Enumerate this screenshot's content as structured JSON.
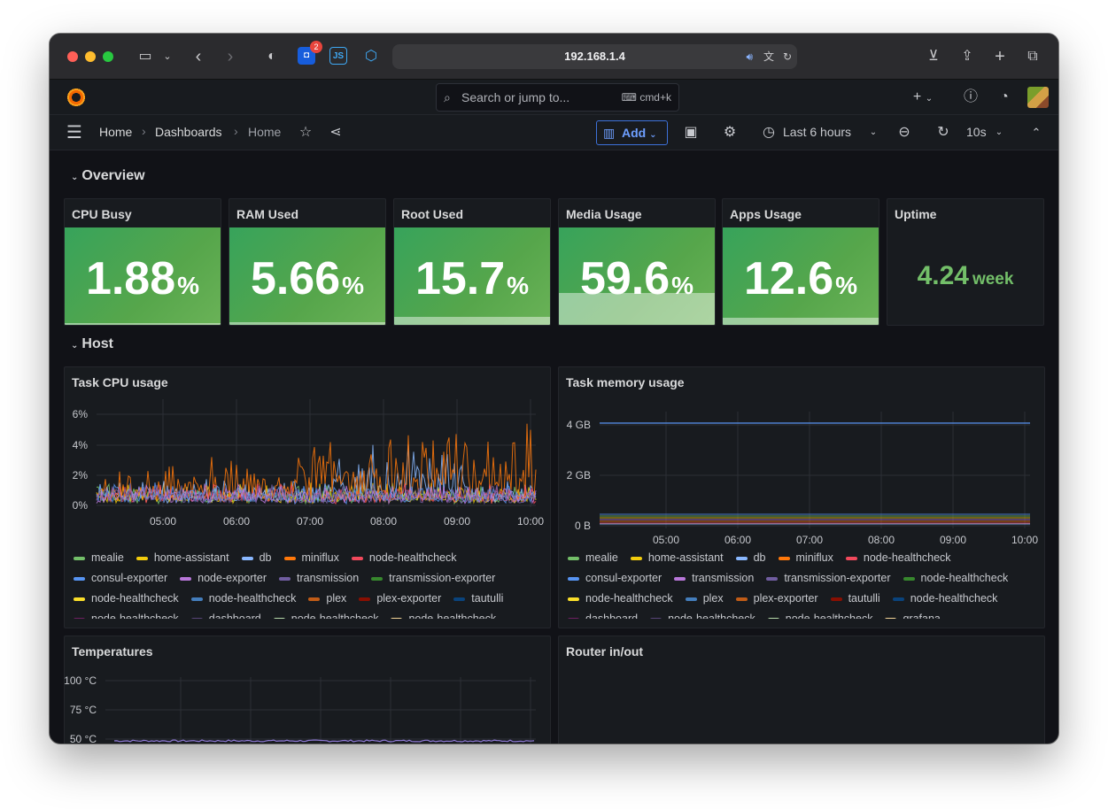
{
  "browser": {
    "url": "192.168.1.4",
    "badge_count": "2",
    "js_ext": "JS"
  },
  "topbar": {
    "search_placeholder": "Search or jump to...",
    "shortcut": "cmd+k"
  },
  "nav": {
    "crumbs": [
      "Home",
      "Dashboards",
      "Home"
    ],
    "add_label": "Add",
    "time_range": "Last 6 hours",
    "refresh_interval": "10s"
  },
  "rows": {
    "overview": "Overview",
    "host": "Host"
  },
  "stats": [
    {
      "title": "CPU Busy",
      "value": "1.88",
      "unit": "%",
      "fill_percent": 1.88
    },
    {
      "title": "RAM Used",
      "value": "5.66",
      "unit": "%",
      "fill_percent": 5.66
    },
    {
      "title": "Root Used",
      "value": "15.7",
      "unit": "%",
      "fill_percent": 15.7
    },
    {
      "title": "Media Usage",
      "value": "59.6",
      "unit": "%",
      "fill_percent": 59.6
    },
    {
      "title": "Apps Usage",
      "value": "12.6",
      "unit": "%",
      "fill_percent": 12.6
    }
  ],
  "uptime": {
    "title": "Uptime",
    "value": "4.24",
    "unit": "week",
    "color": "#73bf69"
  },
  "cpu_panel": {
    "title": "Task CPU usage",
    "y_ticks": [
      "6%",
      "4%",
      "2%",
      "0%"
    ],
    "x_ticks": [
      "05:00",
      "06:00",
      "07:00",
      "08:00",
      "09:00",
      "10:00"
    ],
    "legend": [
      {
        "name": "mealie",
        "color": "#73bf69"
      },
      {
        "name": "home-assistant",
        "color": "#f2cc0c"
      },
      {
        "name": "db",
        "color": "#8ab8ff"
      },
      {
        "name": "miniflux",
        "color": "#ff780a"
      },
      {
        "name": "node-healthcheck",
        "color": "#f2495c"
      },
      {
        "name": "consul-exporter",
        "color": "#5794f2"
      },
      {
        "name": "node-exporter",
        "color": "#b877d9"
      },
      {
        "name": "transmission",
        "color": "#705da0"
      },
      {
        "name": "transmission-exporter",
        "color": "#37872d"
      },
      {
        "name": "node-healthcheck",
        "color": "#fade2a"
      },
      {
        "name": "node-healthcheck",
        "color": "#447ebc"
      },
      {
        "name": "plex",
        "color": "#c15c17"
      },
      {
        "name": "plex-exporter",
        "color": "#890f02"
      },
      {
        "name": "tautulli",
        "color": "#0a437c"
      },
      {
        "name": "node-healthcheck",
        "color": "#6d1f62"
      },
      {
        "name": "dashboard",
        "color": "#584477"
      },
      {
        "name": "node-healthcheck",
        "color": "#b7dbab"
      },
      {
        "name": "node-healthcheck",
        "color": "#f4d598"
      }
    ]
  },
  "mem_panel": {
    "title": "Task memory usage",
    "y_ticks": [
      "4 GB",
      "2 GB",
      "0 B"
    ],
    "x_ticks": [
      "05:00",
      "06:00",
      "07:00",
      "08:00",
      "09:00",
      "10:00"
    ],
    "legend": [
      {
        "name": "mealie",
        "color": "#73bf69"
      },
      {
        "name": "home-assistant",
        "color": "#f2cc0c"
      },
      {
        "name": "db",
        "color": "#8ab8ff"
      },
      {
        "name": "miniflux",
        "color": "#ff780a"
      },
      {
        "name": "node-healthcheck",
        "color": "#f2495c"
      },
      {
        "name": "consul-exporter",
        "color": "#5794f2"
      },
      {
        "name": "transmission",
        "color": "#b877d9"
      },
      {
        "name": "transmission-exporter",
        "color": "#705da0"
      },
      {
        "name": "node-healthcheck",
        "color": "#37872d"
      },
      {
        "name": "node-healthcheck",
        "color": "#fade2a"
      },
      {
        "name": "plex",
        "color": "#447ebc"
      },
      {
        "name": "plex-exporter",
        "color": "#c15c17"
      },
      {
        "name": "tautulli",
        "color": "#890f02"
      },
      {
        "name": "node-healthcheck",
        "color": "#0a437c"
      },
      {
        "name": "dashboard",
        "color": "#6d1f62"
      },
      {
        "name": "node-healthcheck",
        "color": "#584477"
      },
      {
        "name": "node-healthcheck",
        "color": "#b7dbab"
      },
      {
        "name": "grafana",
        "color": "#f4d598"
      }
    ]
  },
  "temp_panel": {
    "title": "Temperatures",
    "y_ticks": [
      "100 °C",
      "75 °C",
      "50 °C"
    ]
  },
  "router_panel": {
    "title": "Router in/out"
  },
  "colors": {
    "stat_green": "#56a64b",
    "accent_blue": "#6e9fff",
    "background": "#111217",
    "panel": "#181b1f"
  }
}
